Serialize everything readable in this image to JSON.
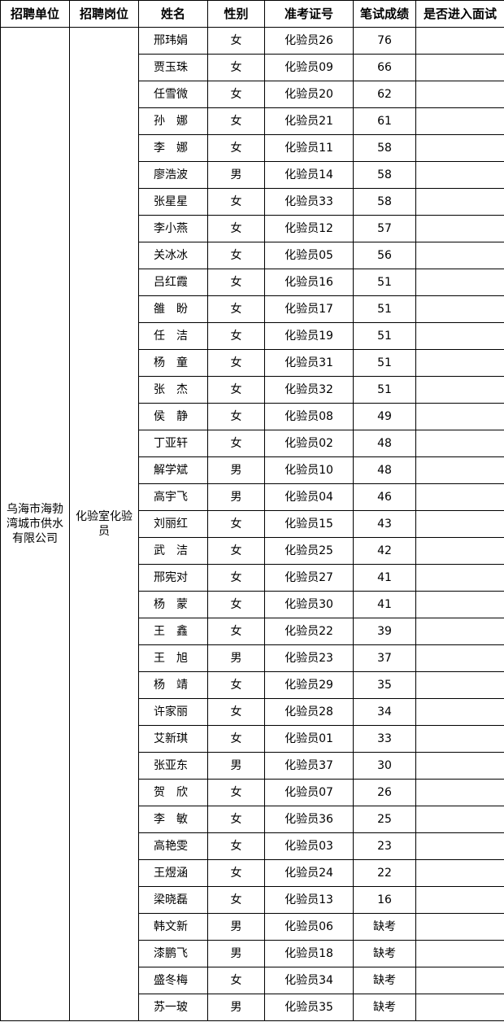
{
  "headers": [
    "招聘单位",
    "招聘岗位",
    "姓名",
    "性别",
    "准考证号",
    "笔试成绩",
    "是否进入面试"
  ],
  "unit": "乌海市海勃湾城市供水有限公司",
  "position": "化验室化验员",
  "rows": [
    {
      "name": "邢玮娟",
      "gender": "女",
      "id": "化验员26",
      "score": "76",
      "interview": ""
    },
    {
      "name": "贾玉珠",
      "gender": "女",
      "id": "化验员09",
      "score": "66",
      "interview": ""
    },
    {
      "name": "任雪微",
      "gender": "女",
      "id": "化验员20",
      "score": "62",
      "interview": ""
    },
    {
      "name": "孙　娜",
      "gender": "女",
      "id": "化验员21",
      "score": "61",
      "interview": ""
    },
    {
      "name": "李　娜",
      "gender": "女",
      "id": "化验员11",
      "score": "58",
      "interview": ""
    },
    {
      "name": "廖浩波",
      "gender": "男",
      "id": "化验员14",
      "score": "58",
      "interview": ""
    },
    {
      "name": "张星星",
      "gender": "女",
      "id": "化验员33",
      "score": "58",
      "interview": ""
    },
    {
      "name": "李小燕",
      "gender": "女",
      "id": "化验员12",
      "score": "57",
      "interview": ""
    },
    {
      "name": "关冰冰",
      "gender": "女",
      "id": "化验员05",
      "score": "56",
      "interview": ""
    },
    {
      "name": "吕红霞",
      "gender": "女",
      "id": "化验员16",
      "score": "51",
      "interview": ""
    },
    {
      "name": "雒　盼",
      "gender": "女",
      "id": "化验员17",
      "score": "51",
      "interview": ""
    },
    {
      "name": "任　洁",
      "gender": "女",
      "id": "化验员19",
      "score": "51",
      "interview": ""
    },
    {
      "name": "杨　童",
      "gender": "女",
      "id": "化验员31",
      "score": "51",
      "interview": ""
    },
    {
      "name": "张　杰",
      "gender": "女",
      "id": "化验员32",
      "score": "51",
      "interview": ""
    },
    {
      "name": "侯　静",
      "gender": "女",
      "id": "化验员08",
      "score": "49",
      "interview": ""
    },
    {
      "name": "丁亚轩",
      "gender": "女",
      "id": "化验员02",
      "score": "48",
      "interview": ""
    },
    {
      "name": "解学斌",
      "gender": "男",
      "id": "化验员10",
      "score": "48",
      "interview": ""
    },
    {
      "name": "高宇飞",
      "gender": "男",
      "id": "化验员04",
      "score": "46",
      "interview": ""
    },
    {
      "name": "刘丽红",
      "gender": "女",
      "id": "化验员15",
      "score": "43",
      "interview": ""
    },
    {
      "name": "武　洁",
      "gender": "女",
      "id": "化验员25",
      "score": "42",
      "interview": ""
    },
    {
      "name": "邢宪对",
      "gender": "女",
      "id": "化验员27",
      "score": "41",
      "interview": ""
    },
    {
      "name": "杨　蒙",
      "gender": "女",
      "id": "化验员30",
      "score": "41",
      "interview": ""
    },
    {
      "name": "王　鑫",
      "gender": "女",
      "id": "化验员22",
      "score": "39",
      "interview": ""
    },
    {
      "name": "王　旭",
      "gender": "男",
      "id": "化验员23",
      "score": "37",
      "interview": ""
    },
    {
      "name": "杨　靖",
      "gender": "女",
      "id": "化验员29",
      "score": "35",
      "interview": ""
    },
    {
      "name": "许家丽",
      "gender": "女",
      "id": "化验员28",
      "score": "34",
      "interview": ""
    },
    {
      "name": "艾新琪",
      "gender": "女",
      "id": "化验员01",
      "score": "33",
      "interview": ""
    },
    {
      "name": "张亚东",
      "gender": "男",
      "id": "化验员37",
      "score": "30",
      "interview": ""
    },
    {
      "name": "贺　欣",
      "gender": "女",
      "id": "化验员07",
      "score": "26",
      "interview": ""
    },
    {
      "name": "李　敏",
      "gender": "女",
      "id": "化验员36",
      "score": "25",
      "interview": ""
    },
    {
      "name": "高艳雯",
      "gender": "女",
      "id": "化验员03",
      "score": "23",
      "interview": ""
    },
    {
      "name": "王煜涵",
      "gender": "女",
      "id": "化验员24",
      "score": "22",
      "interview": ""
    },
    {
      "name": "梁晓磊",
      "gender": "女",
      "id": "化验员13",
      "score": "16",
      "interview": ""
    },
    {
      "name": "韩文新",
      "gender": "男",
      "id": "化验员06",
      "score": "缺考",
      "interview": ""
    },
    {
      "name": "漆鹏飞",
      "gender": "男",
      "id": "化验员18",
      "score": "缺考",
      "interview": ""
    },
    {
      "name": "盛冬梅",
      "gender": "女",
      "id": "化验员34",
      "score": "缺考",
      "interview": ""
    },
    {
      "name": "苏一玻",
      "gender": "男",
      "id": "化验员35",
      "score": "缺考",
      "interview": ""
    }
  ]
}
